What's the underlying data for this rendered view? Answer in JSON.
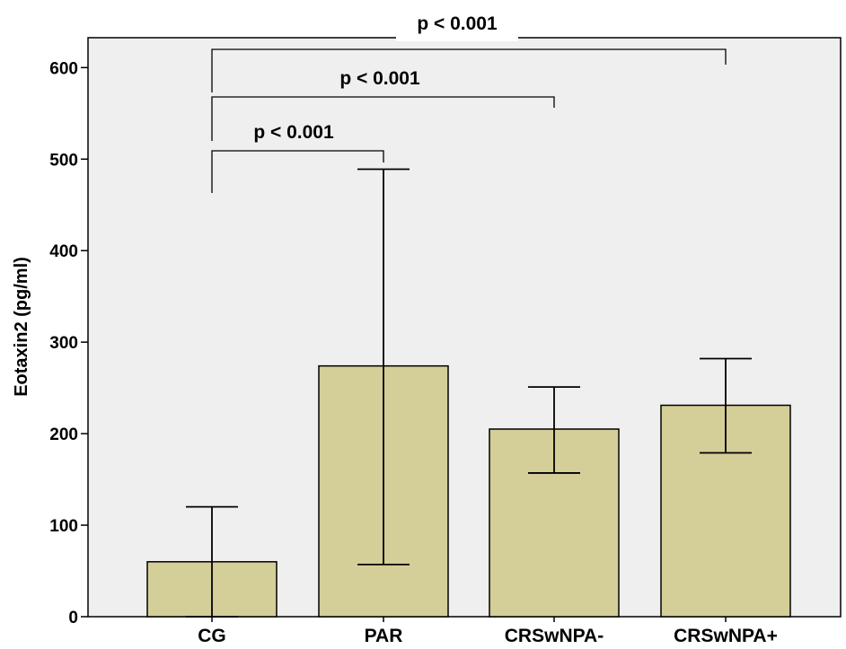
{
  "chart_data": {
    "type": "bar",
    "categories": [
      "CG",
      "PAR",
      "CRSwNPA-",
      "CRSwNPA+"
    ],
    "values": [
      60,
      274,
      205,
      231
    ],
    "error_bars": [
      {
        "low": 0,
        "high": 120
      },
      {
        "low": 57,
        "high": 489
      },
      {
        "low": 157,
        "high": 251
      },
      {
        "low": 179,
        "high": 282
      }
    ],
    "title": "",
    "xlabel": "",
    "ylabel": "Eotaxin2 (pg/ml)",
    "ylim": [
      0,
      640
    ],
    "yticks": [
      0,
      100,
      200,
      300,
      400,
      500,
      600
    ],
    "grid": false,
    "annotations": [
      {
        "text": "p < 0.001",
        "from": "CG",
        "to": "PAR"
      },
      {
        "text": "p < 0.001",
        "from": "CG",
        "to": "CRSwNPA-"
      },
      {
        "text": "p < 0.001",
        "from": "CG",
        "to": "CRSwNPA+"
      }
    ],
    "colors": {
      "bar_fill": "#d4ce98",
      "plot_background": "#efefef",
      "stroke": "#000000"
    }
  }
}
